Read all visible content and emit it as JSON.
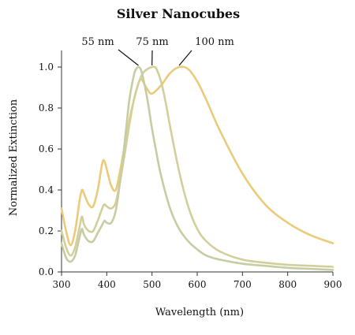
{
  "chart_data": {
    "type": "line",
    "title": "Silver Nanocubes",
    "xlabel": "Wavelength (nm)",
    "ylabel": "Normalized Extinction",
    "xlim": [
      300,
      900
    ],
    "ylim": [
      0.0,
      1.05
    ],
    "x_ticks": [
      300,
      400,
      500,
      600,
      700,
      800,
      900
    ],
    "x_tick_labels": [
      "300",
      "400",
      "500",
      "600",
      "700",
      "800",
      "900"
    ],
    "y_ticks": [
      0.0,
      0.2,
      0.4,
      0.6,
      0.8,
      1.0
    ],
    "y_tick_labels": [
      "0.0",
      "0.2",
      "0.4",
      "0.6",
      "0.8",
      "1.0"
    ],
    "grid": false,
    "legend": "none",
    "series": [
      {
        "name": "100 nm",
        "color": "#EBCB7A",
        "x": [
          300,
          310,
          320,
          330,
          340,
          345,
          350,
          360,
          370,
          380,
          390,
          395,
          400,
          410,
          420,
          430,
          440,
          450,
          460,
          470,
          475,
          480,
          490,
          500,
          520,
          540,
          560,
          580,
          600,
          620,
          650,
          700,
          750,
          800,
          850,
          900
        ],
        "y": [
          0.31,
          0.2,
          0.13,
          0.2,
          0.35,
          0.4,
          0.38,
          0.33,
          0.32,
          0.4,
          0.53,
          0.54,
          0.5,
          0.42,
          0.4,
          0.5,
          0.62,
          0.74,
          0.84,
          0.92,
          0.94,
          0.93,
          0.89,
          0.87,
          0.91,
          0.97,
          1.0,
          0.99,
          0.93,
          0.84,
          0.69,
          0.48,
          0.33,
          0.24,
          0.18,
          0.14
        ]
      },
      {
        "name": "75 nm",
        "color": "#D3CF9B",
        "x": [
          300,
          310,
          320,
          330,
          340,
          345,
          350,
          360,
          370,
          380,
          390,
          395,
          400,
          410,
          420,
          430,
          440,
          450,
          460,
          470,
          480,
          490,
          500,
          505,
          510,
          520,
          530,
          540,
          560,
          580,
          600,
          620,
          650,
          700,
          750,
          800,
          850,
          900
        ],
        "y": [
          0.2,
          0.12,
          0.08,
          0.12,
          0.22,
          0.27,
          0.23,
          0.2,
          0.2,
          0.25,
          0.31,
          0.33,
          0.32,
          0.31,
          0.34,
          0.45,
          0.58,
          0.72,
          0.84,
          0.92,
          0.97,
          0.99,
          1.0,
          1.0,
          0.99,
          0.93,
          0.83,
          0.71,
          0.49,
          0.32,
          0.21,
          0.15,
          0.1,
          0.06,
          0.045,
          0.035,
          0.03,
          0.025
        ]
      },
      {
        "name": "55 nm",
        "color": "#C5CDA3",
        "x": [
          300,
          310,
          320,
          330,
          340,
          345,
          350,
          360,
          370,
          380,
          390,
          395,
          400,
          410,
          420,
          430,
          440,
          450,
          460,
          465,
          470,
          475,
          480,
          490,
          500,
          510,
          520,
          540,
          560,
          580,
          600,
          620,
          650,
          700,
          750,
          800,
          850,
          900
        ],
        "y": [
          0.14,
          0.07,
          0.05,
          0.08,
          0.17,
          0.21,
          0.18,
          0.15,
          0.15,
          0.19,
          0.23,
          0.25,
          0.24,
          0.24,
          0.3,
          0.45,
          0.64,
          0.84,
          0.96,
          0.99,
          1.0,
          0.99,
          0.95,
          0.84,
          0.7,
          0.58,
          0.47,
          0.31,
          0.21,
          0.15,
          0.11,
          0.08,
          0.06,
          0.04,
          0.03,
          0.02,
          0.015,
          0.01
        ]
      }
    ],
    "annotations": [
      {
        "text": "55 nm",
        "target_x": 470,
        "target_y": 1.0
      },
      {
        "text": "75 nm",
        "target_x": 500,
        "target_y": 1.0
      },
      {
        "text": "100 nm",
        "target_x": 560,
        "target_y": 1.0
      }
    ]
  }
}
